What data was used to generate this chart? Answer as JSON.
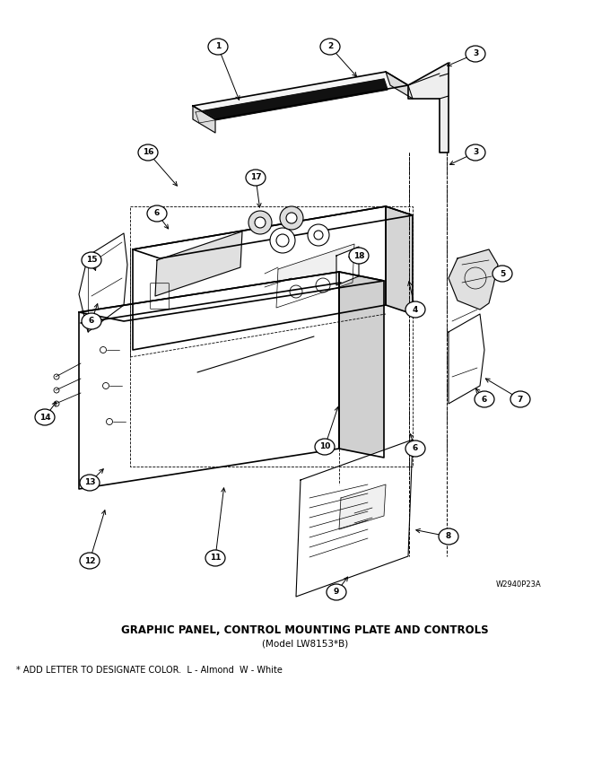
{
  "title": "GRAPHIC PANEL, CONTROL MOUNTING PLATE AND CONTROLS",
  "subtitle": "(Model LW8153*B)",
  "footnote": "* ADD LETTER TO DESIGNATE COLOR.  L - Almond  W - White",
  "watermark": "W2940P23A",
  "bg_color": "#ffffff",
  "title_fontsize": 8.5,
  "subtitle_fontsize": 7.5,
  "footnote_fontsize": 7.0,
  "fig_width": 6.8,
  "fig_height": 8.46
}
